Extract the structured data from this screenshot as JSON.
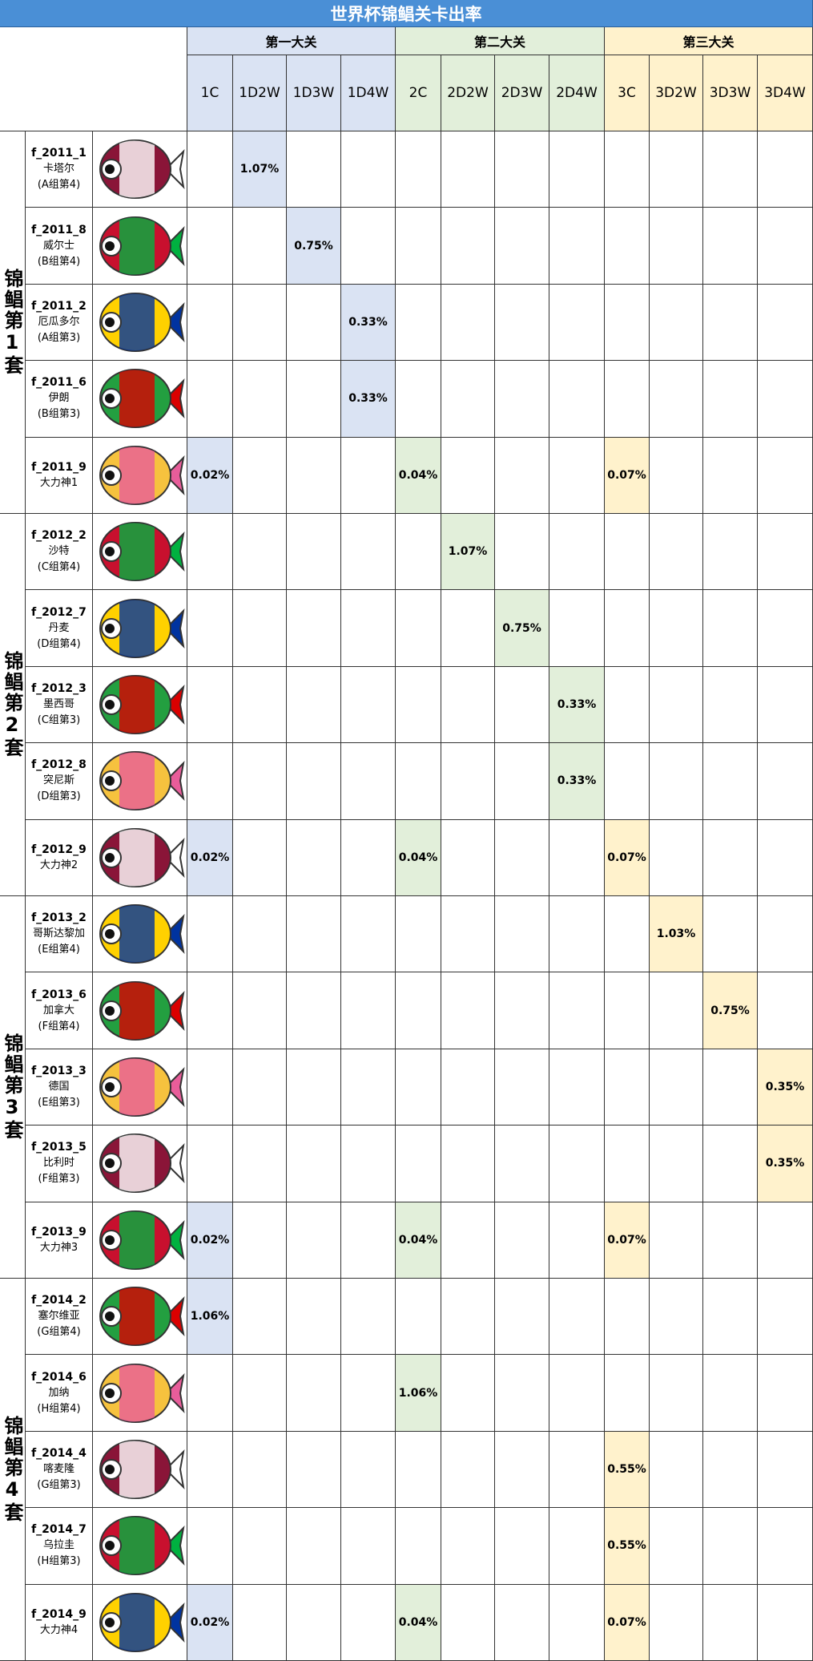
{
  "header": {
    "title": "世界杯锦鲳关卡出率"
  },
  "groups": [
    {
      "label": "第一大关",
      "columns": [
        "1C",
        "1D2W",
        "1D3W",
        "1D4W"
      ]
    },
    {
      "label": "第二大关",
      "columns": [
        "2C",
        "2D2W",
        "2D3W",
        "2D4W"
      ]
    },
    {
      "label": "第三大关",
      "columns": [
        "3C",
        "3D2W",
        "3D3W",
        "3D4W"
      ]
    }
  ],
  "sets": [
    {
      "label": "锦鲳第1套",
      "fish": [
        {
          "id": "f_2011_1",
          "name": "卡塔尔",
          "group": "(A组第4)",
          "rates": [
            null,
            "1.07%",
            null,
            null,
            null,
            null,
            null,
            null,
            null,
            null,
            null,
            null
          ]
        },
        {
          "id": "f_2011_8",
          "name": "威尔士",
          "group": "(B组第4)",
          "rates": [
            null,
            null,
            "0.75%",
            null,
            null,
            null,
            null,
            null,
            null,
            null,
            null,
            null
          ]
        },
        {
          "id": "f_2011_2",
          "name": "厄瓜多尔",
          "group": "(A组第3)",
          "rates": [
            null,
            null,
            null,
            "0.33%",
            null,
            null,
            null,
            null,
            null,
            null,
            null,
            null
          ]
        },
        {
          "id": "f_2011_6",
          "name": "伊朗",
          "group": "(B组第3)",
          "rates": [
            null,
            null,
            null,
            "0.33%",
            null,
            null,
            null,
            null,
            null,
            null,
            null,
            null
          ]
        },
        {
          "id": "f_2011_9",
          "name": "大力神1",
          "rates": [
            "0.02%",
            null,
            null,
            null,
            "0.04%",
            null,
            null,
            null,
            "0.07%",
            null,
            null,
            null
          ]
        }
      ]
    },
    {
      "label": "锦鲳第2套",
      "fish": [
        {
          "id": "f_2012_2",
          "name": "沙特",
          "group": "(C组第4)",
          "rates": [
            null,
            null,
            null,
            null,
            null,
            "1.07%",
            null,
            null,
            null,
            null,
            null,
            null
          ]
        },
        {
          "id": "f_2012_7",
          "name": "丹麦",
          "group": "(D组第4)",
          "rates": [
            null,
            null,
            null,
            null,
            null,
            null,
            "0.75%",
            null,
            null,
            null,
            null,
            null
          ]
        },
        {
          "id": "f_2012_3",
          "name": "墨西哥",
          "group": "(C组第3)",
          "rates": [
            null,
            null,
            null,
            null,
            null,
            null,
            null,
            "0.33%",
            null,
            null,
            null,
            null
          ]
        },
        {
          "id": "f_2012_8",
          "name": "突尼斯",
          "group": "(D组第3)",
          "rates": [
            null,
            null,
            null,
            null,
            null,
            null,
            null,
            "0.33%",
            null,
            null,
            null,
            null
          ]
        },
        {
          "id": "f_2012_9",
          "name": "大力神2",
          "rates": [
            "0.02%",
            null,
            null,
            null,
            "0.04%",
            null,
            null,
            null,
            "0.07%",
            null,
            null,
            null
          ]
        }
      ]
    },
    {
      "label": "锦鲳第3套",
      "fish": [
        {
          "id": "f_2013_2",
          "name": "哥斯达黎加",
          "group": "(E组第4)",
          "rates": [
            null,
            null,
            null,
            null,
            null,
            null,
            null,
            null,
            null,
            "1.03%",
            null,
            null
          ]
        },
        {
          "id": "f_2013_6",
          "name": "加拿大",
          "group": "(F组第4)",
          "rates": [
            null,
            null,
            null,
            null,
            null,
            null,
            null,
            null,
            null,
            null,
            "0.75%",
            null
          ]
        },
        {
          "id": "f_2013_3",
          "name": "德国",
          "group": "(E组第3)",
          "rates": [
            null,
            null,
            null,
            null,
            null,
            null,
            null,
            null,
            null,
            null,
            null,
            "0.35%"
          ]
        },
        {
          "id": "f_2013_5",
          "name": "比利时",
          "group": "(F组第3)",
          "rates": [
            null,
            null,
            null,
            null,
            null,
            null,
            null,
            null,
            null,
            null,
            null,
            "0.35%"
          ]
        },
        {
          "id": "f_2013_9",
          "name": "大力神3",
          "rates": [
            "0.02%",
            null,
            null,
            null,
            "0.04%",
            null,
            null,
            null,
            "0.07%",
            null,
            null,
            null
          ]
        }
      ]
    },
    {
      "label": "锦鲳第4套",
      "fish": [
        {
          "id": "f_2014_2",
          "name": "塞尔维亚",
          "group": "(G组第4)",
          "rates": [
            "1.06%",
            null,
            null,
            null,
            null,
            null,
            null,
            null,
            null,
            null,
            null,
            null
          ]
        },
        {
          "id": "f_2014_6",
          "name": "加纳",
          "group": "(H组第4)",
          "rates": [
            null,
            null,
            null,
            null,
            "1.06%",
            null,
            null,
            null,
            null,
            null,
            null,
            null
          ]
        },
        {
          "id": "f_2014_4",
          "name": "喀麦隆",
          "group": "(G组第3)",
          "rates": [
            null,
            null,
            null,
            null,
            null,
            null,
            null,
            null,
            "0.55%",
            null,
            null,
            null
          ]
        },
        {
          "id": "f_2014_7",
          "name": "乌拉圭",
          "group": "(H组第3)",
          "rates": [
            null,
            null,
            null,
            null,
            null,
            null,
            null,
            null,
            "0.55%",
            null,
            null,
            null
          ]
        },
        {
          "id": "f_2014_9",
          "name": "大力神4",
          "rates": [
            "0.02%",
            null,
            null,
            null,
            "0.04%",
            null,
            null,
            null,
            "0.07%",
            null,
            null,
            null
          ]
        }
      ]
    }
  ]
}
